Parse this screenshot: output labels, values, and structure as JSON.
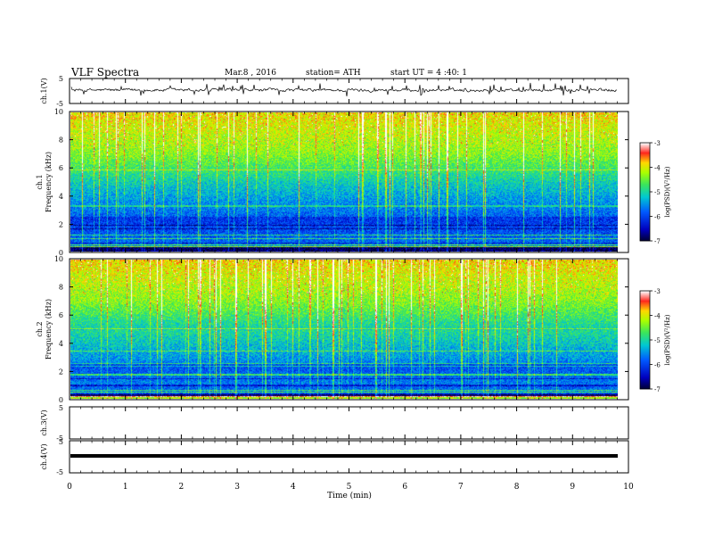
{
  "header": {
    "title": "VLF Spectra",
    "date": "Mar.8 , 2016",
    "station": "station= ATH",
    "start": "start UT = 4 :40: 1"
  },
  "chart_data": [
    {
      "type": "line",
      "name": "ch1-waveform",
      "ylabel": "ch.1(V)",
      "ylim": [
        -5,
        5
      ],
      "yticks": [
        "5",
        "-5"
      ],
      "xlim": [
        0,
        10
      ],
      "baseline": 0,
      "noise": "fluctuating around 0 V with spikes to about ±2 V"
    },
    {
      "type": "heatmap",
      "name": "ch1-spectrogram",
      "ylabel_top": "ch.1",
      "ylabel": "Frequency (kHz)",
      "ylim": [
        0,
        10
      ],
      "yticks": [
        "0",
        "2",
        "4",
        "6",
        "8",
        "10"
      ],
      "xlim": [
        0,
        9.8
      ],
      "colorbar": {
        "label": "log(PSD)(V²/Hz)",
        "range": [
          -7,
          -3
        ],
        "ticks": [
          "-3",
          "-4",
          "-5",
          "-6",
          "-7"
        ],
        "colors": [
          "#ffffff",
          "#ff2020",
          "#ffd000",
          "#7fff00",
          "#00d0a0",
          "#0060ff",
          "#0000c0",
          "#000030"
        ]
      }
    },
    {
      "type": "heatmap",
      "name": "ch2-spectrogram",
      "ylabel_top": "ch.2",
      "ylabel": "Frequency (kHz)",
      "ylim": [
        0,
        10
      ],
      "yticks": [
        "0",
        "2",
        "4",
        "6",
        "8",
        "10"
      ],
      "xlim": [
        0,
        9.8
      ],
      "colorbar": {
        "label": "log(PSD)(V²/Hz)",
        "range": [
          -7,
          -3
        ],
        "ticks": [
          "-3",
          "-4",
          "-5",
          "-6",
          "-7"
        ]
      }
    },
    {
      "type": "line",
      "name": "ch3-waveform",
      "ylabel": "ch.3(V)",
      "ylim": [
        -5,
        5
      ],
      "yticks": [
        "5",
        "-5"
      ],
      "values": []
    },
    {
      "type": "line",
      "name": "ch4-waveform",
      "ylabel": "ch.4(V)",
      "ylim": [
        -5,
        5
      ],
      "yticks": [
        "5",
        "-5"
      ],
      "baseline": 0
    }
  ],
  "xaxis": {
    "label": "Time (min)",
    "range": [
      0,
      10
    ],
    "ticks": [
      "0",
      "1",
      "2",
      "3",
      "4",
      "5",
      "6",
      "7",
      "8",
      "9",
      "10"
    ]
  }
}
